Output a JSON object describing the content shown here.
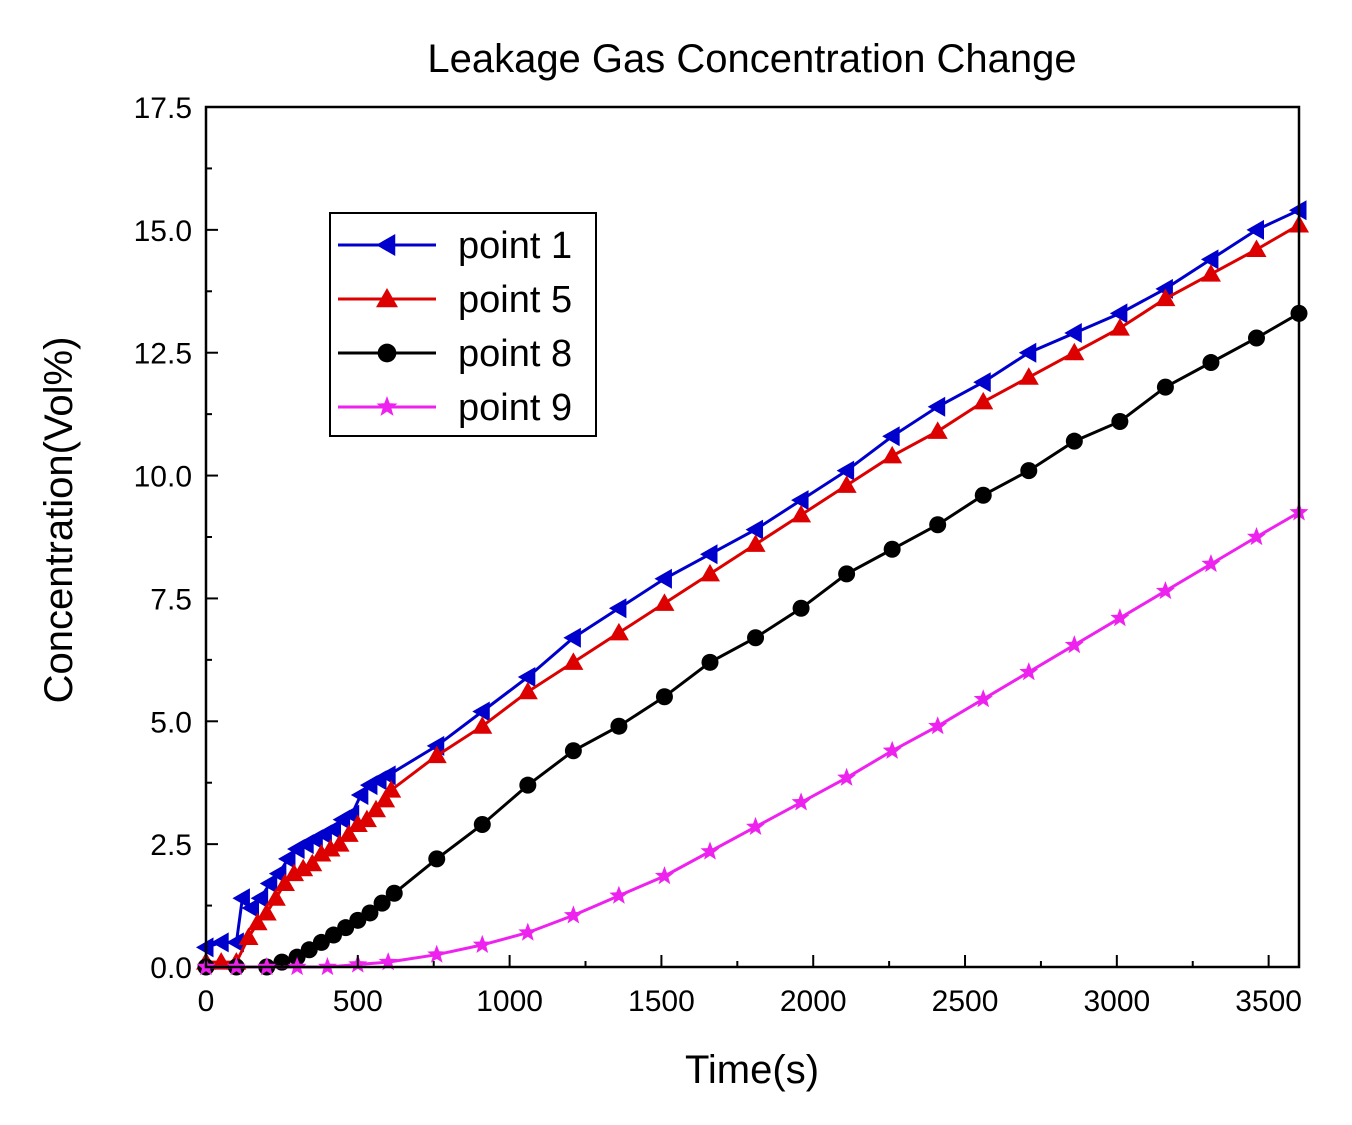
{
  "chart_data": {
    "type": "line",
    "title": "Leakage Gas Concentration Change",
    "xlabel": "Time(s)",
    "ylabel": "Concentration(Vol%)",
    "xlim": [
      0,
      3600
    ],
    "ylim": [
      0,
      17.5
    ],
    "x_ticks": [
      "0",
      "500",
      "1000",
      "1500",
      "2000",
      "2500",
      "3000",
      "3500"
    ],
    "y_ticks": [
      "0.0",
      "2.5",
      "5.0",
      "7.5",
      "10.0",
      "12.5",
      "15.0",
      "17.5"
    ],
    "grid": false,
    "legend_position": "upper-left",
    "series": [
      {
        "name": "point 1",
        "color": "#0000cc",
        "marker": "triangle-left",
        "x": [
          0,
          50,
          100,
          120,
          150,
          180,
          210,
          240,
          270,
          300,
          330,
          360,
          390,
          420,
          450,
          480,
          510,
          540,
          570,
          600,
          760,
          910,
          1060,
          1210,
          1360,
          1510,
          1660,
          1810,
          1960,
          2110,
          2260,
          2410,
          2560,
          2710,
          2860,
          3010,
          3160,
          3310,
          3460,
          3600
        ],
        "y": [
          0.4,
          0.5,
          0.5,
          1.4,
          1.2,
          1.4,
          1.7,
          1.9,
          2.2,
          2.4,
          2.5,
          2.6,
          2.7,
          2.8,
          3.0,
          3.1,
          3.5,
          3.7,
          3.8,
          3.9,
          4.5,
          5.2,
          5.9,
          6.7,
          7.3,
          7.9,
          8.4,
          8.9,
          9.5,
          10.1,
          10.8,
          11.4,
          11.9,
          12.5,
          12.9,
          13.3,
          13.8,
          14.4,
          15.0,
          15.4
        ]
      },
      {
        "name": "point 5",
        "color": "#dd0000",
        "marker": "triangle-up",
        "x": [
          0,
          50,
          100,
          140,
          170,
          200,
          230,
          260,
          290,
          320,
          350,
          380,
          410,
          440,
          470,
          500,
          530,
          560,
          590,
          610,
          760,
          910,
          1060,
          1210,
          1360,
          1510,
          1660,
          1810,
          1960,
          2110,
          2260,
          2410,
          2560,
          2710,
          2860,
          3010,
          3160,
          3310,
          3460,
          3600
        ],
        "y": [
          0.1,
          0.1,
          0.1,
          0.6,
          0.9,
          1.1,
          1.4,
          1.7,
          1.9,
          2.0,
          2.1,
          2.3,
          2.4,
          2.5,
          2.7,
          2.9,
          3.0,
          3.2,
          3.4,
          3.6,
          4.3,
          4.9,
          5.6,
          6.2,
          6.8,
          7.4,
          8.0,
          8.6,
          9.2,
          9.8,
          10.4,
          10.9,
          11.5,
          12.0,
          12.5,
          13.0,
          13.6,
          14.1,
          14.6,
          15.1
        ]
      },
      {
        "name": "point 8",
        "color": "#000000",
        "marker": "circle",
        "x": [
          0,
          100,
          200,
          250,
          300,
          340,
          380,
          420,
          460,
          500,
          540,
          580,
          620,
          760,
          910,
          1060,
          1210,
          1360,
          1510,
          1660,
          1810,
          1960,
          2110,
          2260,
          2410,
          2560,
          2710,
          2860,
          3010,
          3160,
          3310,
          3460,
          3600
        ],
        "y": [
          0.0,
          0.0,
          0.0,
          0.1,
          0.2,
          0.35,
          0.5,
          0.65,
          0.8,
          0.95,
          1.1,
          1.3,
          1.5,
          2.2,
          2.9,
          3.7,
          4.4,
          4.9,
          5.5,
          6.2,
          6.7,
          7.3,
          8.0,
          8.5,
          9.0,
          9.6,
          10.1,
          10.7,
          11.1,
          11.8,
          12.3,
          12.8,
          13.3
        ]
      },
      {
        "name": "point 9",
        "color": "#ee22ee",
        "marker": "star",
        "x": [
          0,
          100,
          200,
          300,
          400,
          500,
          600,
          760,
          910,
          1060,
          1210,
          1360,
          1510,
          1660,
          1810,
          1960,
          2110,
          2260,
          2410,
          2560,
          2710,
          2860,
          3010,
          3160,
          3310,
          3460,
          3600
        ],
        "y": [
          0.0,
          0.0,
          0.0,
          0.0,
          0.0,
          0.05,
          0.1,
          0.25,
          0.45,
          0.7,
          1.05,
          1.45,
          1.85,
          2.35,
          2.85,
          3.35,
          3.85,
          4.4,
          4.9,
          5.45,
          6.0,
          6.55,
          7.1,
          7.65,
          8.2,
          8.75,
          9.25
        ]
      }
    ]
  }
}
